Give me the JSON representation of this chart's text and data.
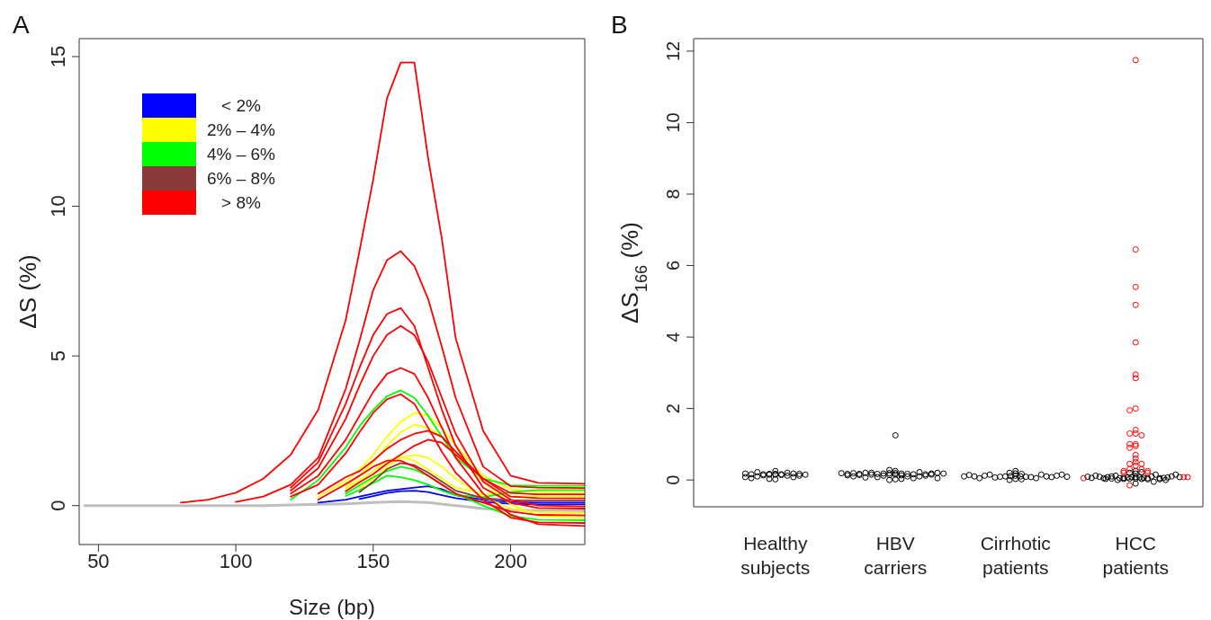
{
  "chart_data": [
    {
      "type": "line",
      "title": "A",
      "xlabel": "Size (bp)",
      "ylabel": "ΔS (%)",
      "xlim": [
        43,
        227
      ],
      "ylim": [
        -1.3,
        15.6
      ],
      "xticks": [
        50,
        100,
        150,
        200
      ],
      "yticks": [
        0,
        5,
        10,
        15
      ],
      "legend": "top left",
      "marker": "none",
      "series": [
        {
          "color": "#bebebe",
          "x": [
            45,
            60,
            70,
            80,
            90,
            100,
            110,
            120,
            130,
            140,
            145,
            150,
            155,
            160,
            165,
            170,
            175,
            180,
            190,
            200,
            210,
            227
          ],
          "values": [
            0,
            0,
            0,
            0,
            0,
            0,
            0,
            0.02,
            0.04,
            0.06,
            0.08,
            0.1,
            0.12,
            0.13,
            0.12,
            0.1,
            0.05,
            0,
            -0.1,
            -0.15,
            -0.17,
            -0.17
          ]
        },
        {
          "name": "< 2%",
          "color": "#0000ff",
          "x": [
            130,
            140,
            145,
            150,
            155,
            160,
            165,
            170,
            175,
            180,
            190,
            200,
            210,
            227
          ],
          "values": [
            0.1,
            0.2,
            0.3,
            0.4,
            0.5,
            0.55,
            0.6,
            0.65,
            0.55,
            0.35,
            0.2,
            0.12,
            0.1,
            0.1
          ]
        },
        {
          "color": "#0000ff",
          "x": [
            145,
            150,
            155,
            160,
            165,
            170,
            175,
            180,
            190,
            200,
            210,
            227
          ],
          "values": [
            0.22,
            0.32,
            0.42,
            0.48,
            0.5,
            0.45,
            0.35,
            0.25,
            0.12,
            0.06,
            0.04,
            0.04
          ]
        },
        {
          "name": "2% – 4%",
          "color": "#ffff00",
          "x": [
            130,
            140,
            145,
            150,
            155,
            160,
            165,
            170,
            175,
            180,
            190,
            200,
            210,
            227
          ],
          "values": [
            0.3,
            0.82,
            1.2,
            1.7,
            2.3,
            2.8,
            3.1,
            3,
            2.6,
            2,
            1,
            0.55,
            0.45,
            0.45
          ]
        },
        {
          "color": "#ffff00",
          "x": [
            140,
            145,
            150,
            155,
            160,
            165,
            170,
            175,
            180,
            190,
            200,
            210,
            227
          ],
          "values": [
            0.64,
            1,
            1.45,
            2,
            2.45,
            2.7,
            2.6,
            2.3,
            1.8,
            0.8,
            0.05,
            -0.35,
            -0.41
          ]
        },
        {
          "color": "#ffff00",
          "x": [
            145,
            150,
            155,
            160,
            165,
            170,
            175,
            180,
            190,
            200,
            210,
            227
          ],
          "values": [
            0.6,
            0.9,
            1.3,
            1.6,
            1.7,
            1.6,
            1.3,
            0.9,
            0.3,
            -0.1,
            -0.22,
            -0.25
          ]
        },
        {
          "color": "#ffff00",
          "x": [
            140,
            145,
            150,
            155,
            160,
            165,
            170,
            175,
            180,
            190,
            200,
            210,
            227
          ],
          "values": [
            0.56,
            0.85,
            1.15,
            1.5,
            1.62,
            1.5,
            1.2,
            0.9,
            0.6,
            0.4,
            0.32,
            0.31,
            0.31
          ]
        },
        {
          "name": "4% – 6%",
          "color": "#00ff00",
          "x": [
            120,
            130,
            140,
            145,
            150,
            155,
            160,
            165,
            170,
            175,
            180,
            190,
            200,
            210,
            227
          ],
          "values": [
            0.2,
            0.85,
            1.95,
            2.65,
            3.2,
            3.65,
            3.85,
            3.6,
            3,
            2.3,
            1.6,
            0.9,
            0.68,
            0.66,
            0.66
          ]
        },
        {
          "color": "#00ff00",
          "x": [
            140,
            145,
            150,
            155,
            160,
            165,
            170,
            175,
            180,
            190,
            200,
            210,
            227
          ],
          "values": [
            0.4,
            0.68,
            0.95,
            1.15,
            1.3,
            1.2,
            1,
            0.7,
            0.4,
            0,
            -0.35,
            -0.47,
            -0.49
          ]
        },
        {
          "color": "#00ff00",
          "x": [
            140,
            145,
            150,
            155,
            160,
            165,
            170,
            175,
            180,
            190,
            200,
            210,
            227
          ],
          "values": [
            0.32,
            0.52,
            0.75,
            1,
            0.95,
            0.85,
            0.7,
            0.5,
            0.35,
            0.28,
            0.45,
            0.52,
            0.52
          ]
        },
        {
          "name": "6% – 8%",
          "color": "#8b3a3a",
          "x": [
            145,
            150,
            155,
            160,
            165,
            170,
            175,
            180,
            190,
            200,
            210,
            227
          ],
          "values": [
            0.45,
            0.8,
            1.22,
            1.42,
            1.35,
            1.1,
            0.8,
            0.5,
            0.25,
            0.18,
            0.17,
            0.17
          ]
        },
        {
          "name": "> 8%",
          "color": "#ff0000",
          "x": [
            80,
            90,
            100,
            110,
            120,
            130,
            140,
            145,
            150,
            155,
            160,
            165,
            170,
            175,
            180,
            190,
            200,
            210,
            227
          ],
          "values": [
            0.1,
            0.2,
            0.43,
            0.9,
            1.7,
            3.2,
            6.2,
            8.5,
            10.9,
            13.6,
            14.8,
            14.8,
            11.6,
            8.9,
            5.6,
            2.5,
            1,
            0.76,
            0.73
          ]
        },
        {
          "color": "#ff0000",
          "x": [
            100,
            110,
            120,
            130,
            140,
            145,
            150,
            155,
            160,
            165,
            170,
            175,
            180,
            190,
            200,
            210,
            227
          ],
          "values": [
            0.12,
            0.3,
            0.7,
            1.6,
            3.9,
            5.5,
            7.2,
            8.2,
            8.5,
            8,
            6.9,
            5.3,
            3.6,
            1.3,
            0.65,
            0.6,
            0.59
          ]
        },
        {
          "color": "#ff0000",
          "x": [
            120,
            130,
            140,
            145,
            150,
            155,
            160,
            165,
            170,
            175,
            180,
            190,
            200,
            210,
            227
          ],
          "values": [
            0.6,
            1.45,
            3.4,
            4.6,
            5.7,
            6.4,
            6.6,
            6,
            4.6,
            3.2,
            2,
            0.6,
            0.1,
            -0.08,
            -0.1
          ]
        },
        {
          "color": "#ff0000",
          "x": [
            120,
            130,
            140,
            145,
            150,
            155,
            160,
            165,
            170,
            175,
            180,
            190,
            200,
            210,
            227
          ],
          "values": [
            0.5,
            1.25,
            2.9,
            4,
            5,
            5.7,
            6,
            5.7,
            4.8,
            3.6,
            2.4,
            0.8,
            0.2,
            0,
            -0.03
          ]
        },
        {
          "color": "#ff0000",
          "x": [
            120,
            130,
            140,
            145,
            150,
            155,
            160,
            165,
            170,
            175,
            180,
            190,
            200,
            210,
            227
          ],
          "values": [
            0.4,
            1,
            2.2,
            3,
            3.8,
            4.4,
            4.6,
            4.4,
            3.6,
            2.6,
            1.6,
            0.4,
            -0.3,
            -0.62,
            -0.68
          ]
        },
        {
          "color": "#ff0000",
          "x": [
            120,
            130,
            140,
            145,
            150,
            155,
            160,
            165,
            170,
            175,
            180,
            190,
            200,
            210,
            227
          ],
          "values": [
            0.3,
            0.7,
            1.75,
            2.45,
            3.1,
            3.55,
            3.72,
            3.4,
            2.6,
            1.8,
            1.1,
            0.2,
            -0.4,
            -0.56,
            -0.58
          ]
        },
        {
          "color": "#ff0000",
          "x": [
            130,
            140,
            145,
            150,
            155,
            160,
            165,
            170,
            175,
            180,
            190,
            200,
            210,
            227
          ],
          "values": [
            0.4,
            0.95,
            1.15,
            1.5,
            1.9,
            2.2,
            2.4,
            2.5,
            2.3,
            1.8,
            0.9,
            0.42,
            0.38,
            0.38
          ]
        },
        {
          "color": "#ff0000",
          "x": [
            140,
            145,
            150,
            155,
            160,
            165,
            170,
            175,
            180,
            190,
            200,
            210,
            227
          ],
          "values": [
            0.48,
            0.78,
            1.05,
            1.4,
            1.7,
            2,
            2.2,
            2.1,
            1.7,
            0.9,
            0.3,
            0.25,
            0.24
          ]
        },
        {
          "color": "#ff0000",
          "x": [
            130,
            140,
            145,
            150,
            155,
            160,
            165,
            170,
            175,
            180,
            190,
            200,
            210,
            227
          ],
          "values": [
            0.2,
            0.72,
            1,
            1.3,
            1.5,
            1.5,
            1.3,
            1,
            0.7,
            0.4,
            0.1,
            -0.2,
            -0.31,
            -0.33
          ]
        }
      ]
    },
    {
      "type": "scatter",
      "title": "B",
      "ylabel": "ΔS$_{166}$ (%)",
      "categories": [
        "Healthy subjects",
        "HBV carriers",
        "Cirrhotic patients",
        "HCC patients"
      ],
      "ylim": [
        -0.75,
        12.35
      ],
      "yticks": [
        0,
        2,
        4,
        6,
        8,
        10,
        12
      ],
      "marker": "circle",
      "series": [
        {
          "color": "#000000",
          "x": [
            "Healthy subjects",
            "Healthy subjects",
            "Healthy subjects",
            "Healthy subjects",
            "Healthy subjects",
            "Healthy subjects",
            "Healthy subjects",
            "Healthy subjects",
            "Healthy subjects",
            "Healthy subjects",
            "Healthy subjects",
            "Healthy subjects",
            "Healthy subjects",
            "Healthy subjects",
            "Healthy subjects",
            "Healthy subjects",
            "Healthy subjects",
            "Healthy subjects",
            "Healthy subjects",
            "Healthy subjects",
            "Healthy subjects",
            "Healthy subjects",
            "Healthy subjects",
            "Healthy subjects",
            "HBV carriers",
            "HBV carriers",
            "HBV carriers",
            "HBV carriers",
            "HBV carriers",
            "HBV carriers",
            "HBV carriers",
            "HBV carriers",
            "HBV carriers",
            "HBV carriers",
            "HBV carriers",
            "HBV carriers",
            "HBV carriers",
            "HBV carriers",
            "HBV carriers",
            "HBV carriers",
            "HBV carriers",
            "HBV carriers",
            "HBV carriers",
            "HBV carriers",
            "HBV carriers",
            "HBV carriers",
            "HBV carriers",
            "HBV carriers",
            "HBV carriers",
            "HBV carriers",
            "HBV carriers",
            "HBV carriers",
            "HBV carriers",
            "HBV carriers",
            "HBV carriers",
            "HBV carriers",
            "HBV carriers",
            "HBV carriers",
            "HBV carriers",
            "HBV carriers",
            "HBV carriers",
            "HBV carriers",
            "HBV carriers",
            "HBV carriers",
            "Cirrhotic patients",
            "Cirrhotic patients",
            "Cirrhotic patients",
            "Cirrhotic patients",
            "Cirrhotic patients",
            "Cirrhotic patients",
            "Cirrhotic patients",
            "Cirrhotic patients",
            "Cirrhotic patients",
            "Cirrhotic patients",
            "Cirrhotic patients",
            "Cirrhotic patients",
            "Cirrhotic patients",
            "Cirrhotic patients",
            "Cirrhotic patients",
            "Cirrhotic patients",
            "Cirrhotic patients",
            "Cirrhotic patients",
            "Cirrhotic patients",
            "Cirrhotic patients",
            "Cirrhotic patients",
            "Cirrhotic patients",
            "Cirrhotic patients",
            "Cirrhotic patients",
            "Cirrhotic patients",
            "Cirrhotic patients",
            "Cirrhotic patients",
            "Cirrhotic patients",
            "HCC patients",
            "HCC patients",
            "HCC patients",
            "HCC patients",
            "HCC patients",
            "HCC patients",
            "HCC patients",
            "HCC patients",
            "HCC patients",
            "HCC patients",
            "HCC patients",
            "HCC patients",
            "HCC patients",
            "HCC patients",
            "HCC patients",
            "HCC patients",
            "HCC patients",
            "HCC patients",
            "HCC patients",
            "HCC patients",
            "HCC patients",
            "HCC patients",
            "HCC patients",
            "HCC patients",
            "HCC patients",
            "HCC patients",
            "HCC patients",
            "HCC patients",
            "HCC patients",
            "HCC patients",
            "HCC patients",
            "HCC patients",
            "HCC patients",
            "HCC patients",
            "HCC patients",
            "HCC patients",
            "HCC patients",
            "HCC patients",
            "HCC patients",
            "HCC patients"
          ],
          "values": [
            0.17,
            0.17,
            0.16,
            0.16,
            0.15,
            0.15,
            0.14,
            0.13,
            0.12,
            0.1,
            0.08,
            0.05,
            0.02,
            0.2,
            0.22,
            0.25,
            0.18,
            0.12,
            0.08,
            0.03,
            0.15,
            0.16,
            0.17,
            0.18,
            1.25,
            0.19,
            0.19,
            0.18,
            0.18,
            0.17,
            0.17,
            0.16,
            0.15,
            0.14,
            0.13,
            0.12,
            0.1,
            0.08,
            0.05,
            0.02,
            0,
            0.2,
            0.22,
            0.25,
            0.28,
            0.2,
            0.15,
            0.1,
            0.07,
            0.03,
            0.12,
            0.14,
            0.16,
            0.17,
            0.18,
            0.19,
            0.2,
            0.15,
            0.1,
            0.05,
            0.13,
            0.17,
            0.18,
            0.19,
            0.12,
            0.11,
            0.1,
            0.1,
            0.09,
            0.09,
            0.08,
            0.07,
            0.05,
            0.03,
            0,
            0.15,
            0.18,
            0.2,
            0.25,
            0.15,
            0.12,
            0.1,
            0.05,
            0.02,
            0.08,
            0.1,
            0.12,
            0.14,
            0.15,
            0.17,
            0.1,
            0.09,
            0.08,
            0.08,
            0.07,
            0.07,
            0.06,
            0.06,
            0.05,
            0.05,
            0.04,
            0.04,
            0.03,
            0.03,
            0.02,
            0.1,
            0.12,
            0.15,
            0.18,
            0.2,
            0.22,
            0.25,
            0.1,
            0.05,
            0,
            -0.05,
            -0.1,
            0.08,
            0.06,
            0.04,
            0.02,
            0.05,
            0.07,
            0.09,
            0.1,
            0.12,
            0.15,
            0.03,
            0,
            0.06,
            0.08,
            0.09
          ]
        },
        {
          "color": "#ff0000",
          "x": [
            "HCC patients",
            "HCC patients",
            "HCC patients",
            "HCC patients",
            "HCC patients",
            "HCC patients",
            "HCC patients",
            "HCC patients",
            "HCC patients",
            "HCC patients",
            "HCC patients",
            "HCC patients",
            "HCC patients",
            "HCC patients",
            "HCC patients",
            "HCC patients",
            "HCC patients",
            "HCC patients",
            "HCC patients",
            "HCC patients",
            "HCC patients",
            "HCC patients",
            "HCC patients",
            "HCC patients",
            "HCC patients",
            "HCC patients",
            "HCC patients",
            "HCC patients",
            "HCC patients",
            "HCC patients",
            "HCC patients",
            "HCC patients",
            "HCC patients"
          ],
          "values": [
            11.75,
            6.45,
            5.4,
            4.9,
            3.85,
            2.95,
            2.85,
            2,
            1.95,
            1.4,
            1.3,
            1.3,
            1.25,
            1,
            1,
            0.95,
            0.9,
            0.7,
            0.6,
            0.5,
            0.45,
            0.45,
            0.4,
            0.3,
            0.3,
            0.25,
            0.25,
            0.2,
            0.2,
            0.08,
            0.05,
            0.08,
            -0.15
          ]
        }
      ]
    }
  ]
}
